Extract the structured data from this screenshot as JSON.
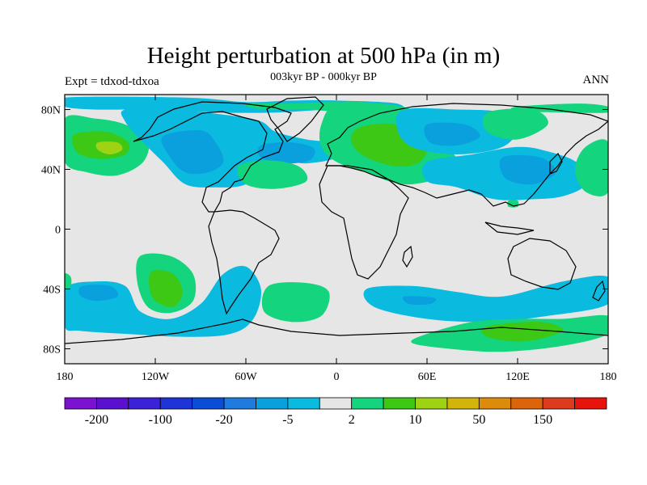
{
  "header": {
    "title": "Height perturbation at 500 hPa (in m)",
    "subtitle": "003kyr BP - 000kyr BP",
    "left_string": "Expt = tdxod-tdxoa",
    "right_string": "ANN"
  },
  "axes": {
    "y_ticks": [
      {
        "label": "80N",
        "lat": 80
      },
      {
        "label": "40N",
        "lat": 40
      },
      {
        "label": "0",
        "lat": 0
      },
      {
        "label": "40S",
        "lat": -40
      },
      {
        "label": "80S",
        "lat": -80
      }
    ],
    "x_ticks": [
      {
        "label": "180",
        "lon": -180
      },
      {
        "label": "120W",
        "lon": -120
      },
      {
        "label": "60W",
        "lon": -60
      },
      {
        "label": "0",
        "lon": 0
      },
      {
        "label": "60E",
        "lon": 60
      },
      {
        "label": "120E",
        "lon": 120
      },
      {
        "label": "180",
        "lon": 180
      }
    ],
    "lon_range": [
      -180,
      180
    ],
    "lat_range": [
      -90,
      90
    ]
  },
  "colorbar": {
    "colors": [
      "#7a12cf",
      "#5a10cc",
      "#3b22d6",
      "#1f34d6",
      "#0a4ed6",
      "#1f7bdd",
      "#0a9fdd",
      "#0abadf",
      "#e6e6e6",
      "#14d47d",
      "#3cc814",
      "#a0d214",
      "#d2b40a",
      "#dc8c0a",
      "#dc640a",
      "#dc3c1e",
      "#e6140a"
    ],
    "labels": [
      {
        "text": "-200",
        "boundary": 1
      },
      {
        "text": "-100",
        "boundary": 3
      },
      {
        "text": "-20",
        "boundary": 5
      },
      {
        "text": "-5",
        "boundary": 7
      },
      {
        "text": "2",
        "boundary": 9
      },
      {
        "text": "10",
        "boundary": 11
      },
      {
        "text": "50",
        "boundary": 13
      },
      {
        "text": "150",
        "boundary": 15
      }
    ]
  },
  "field": [
    {
      "name": "arctic-pacific-blue",
      "level": 7,
      "pts": [
        [
          -180,
          88
        ],
        [
          -100,
          88
        ],
        [
          -60,
          85
        ],
        [
          -30,
          86
        ],
        [
          0,
          86
        ],
        [
          40,
          84
        ],
        [
          40,
          78
        ],
        [
          0,
          80
        ],
        [
          -40,
          78
        ],
        [
          -80,
          78
        ],
        [
          -120,
          80
        ],
        [
          -160,
          80
        ],
        [
          -180,
          82
        ]
      ]
    },
    {
      "name": "arctic-atlantic-green",
      "level": 9,
      "pts": [
        [
          -60,
          84
        ],
        [
          -30,
          84
        ],
        [
          0,
          85
        ],
        [
          30,
          83
        ],
        [
          40,
          80
        ],
        [
          10,
          78
        ],
        [
          -20,
          80
        ],
        [
          -50,
          80
        ]
      ]
    },
    {
      "name": "arctic-right-green",
      "level": 9,
      "pts": [
        [
          120,
          82
        ],
        [
          160,
          84
        ],
        [
          180,
          82
        ],
        [
          180,
          78
        ],
        [
          150,
          78
        ],
        [
          120,
          79
        ]
      ]
    },
    {
      "name": "north-pacific-green",
      "level": 9,
      "pts": [
        [
          -180,
          74
        ],
        [
          -160,
          74
        ],
        [
          -140,
          70
        ],
        [
          -125,
          60
        ],
        [
          -128,
          45
        ],
        [
          -145,
          36
        ],
        [
          -165,
          38
        ],
        [
          -180,
          45
        ]
      ]
    },
    {
      "name": "north-pacific-lime-core",
      "level": 10,
      "pts": [
        [
          -172,
          64
        ],
        [
          -152,
          65
        ],
        [
          -138,
          58
        ],
        [
          -140,
          50
        ],
        [
          -155,
          47
        ],
        [
          -170,
          50
        ],
        [
          -175,
          58
        ]
      ]
    },
    {
      "name": "north-pacific-yellow-core",
      "level": 11,
      "pts": [
        [
          -158,
          58
        ],
        [
          -145,
          58
        ],
        [
          -142,
          53
        ],
        [
          -150,
          50
        ],
        [
          -158,
          53
        ]
      ]
    },
    {
      "name": "north-america-blue",
      "level": 7,
      "pts": [
        [
          -140,
          80
        ],
        [
          -110,
          80
        ],
        [
          -70,
          76
        ],
        [
          -50,
          72
        ],
        [
          -40,
          65
        ],
        [
          -20,
          60
        ],
        [
          0,
          57
        ],
        [
          0,
          48
        ],
        [
          -20,
          44
        ],
        [
          -40,
          45
        ],
        [
          -60,
          30
        ],
        [
          -80,
          28
        ],
        [
          -100,
          30
        ],
        [
          -115,
          45
        ],
        [
          -130,
          60
        ],
        [
          -140,
          72
        ]
      ]
    },
    {
      "name": "north-america-blue-core",
      "level": 6,
      "pts": [
        [
          -115,
          62
        ],
        [
          -90,
          66
        ],
        [
          -80,
          58
        ],
        [
          -75,
          45
        ],
        [
          -85,
          38
        ],
        [
          -100,
          38
        ],
        [
          -110,
          48
        ]
      ]
    },
    {
      "name": "north-atlantic-blue-core",
      "level": 6,
      "pts": [
        [
          -50,
          56
        ],
        [
          -30,
          58
        ],
        [
          -15,
          54
        ],
        [
          -18,
          46
        ],
        [
          -35,
          44
        ],
        [
          -50,
          48
        ]
      ]
    },
    {
      "name": "atlantic-green",
      "level": 9,
      "pts": [
        [
          -65,
          42
        ],
        [
          -45,
          46
        ],
        [
          -25,
          42
        ],
        [
          -20,
          32
        ],
        [
          -40,
          27
        ],
        [
          -60,
          30
        ]
      ]
    },
    {
      "name": "eurasia-green",
      "level": 9,
      "pts": [
        [
          0,
          84
        ],
        [
          30,
          84
        ],
        [
          50,
          80
        ],
        [
          60,
          72
        ],
        [
          70,
          60
        ],
        [
          80,
          45
        ],
        [
          70,
          35
        ],
        [
          50,
          30
        ],
        [
          35,
          32
        ],
        [
          20,
          38
        ],
        [
          0,
          45
        ],
        [
          -10,
          55
        ],
        [
          -10,
          70
        ]
      ]
    },
    {
      "name": "eurasia-lime-core",
      "level": 10,
      "pts": [
        [
          15,
          68
        ],
        [
          40,
          70
        ],
        [
          60,
          58
        ],
        [
          55,
          45
        ],
        [
          40,
          42
        ],
        [
          20,
          48
        ],
        [
          10,
          58
        ]
      ]
    },
    {
      "name": "siberia-blue",
      "level": 7,
      "pts": [
        [
          45,
          80
        ],
        [
          80,
          80
        ],
        [
          110,
          78
        ],
        [
          120,
          68
        ],
        [
          110,
          55
        ],
        [
          80,
          50
        ],
        [
          50,
          55
        ],
        [
          40,
          68
        ]
      ]
    },
    {
      "name": "siberia-blue-core",
      "level": 6,
      "pts": [
        [
          60,
          70
        ],
        [
          85,
          70
        ],
        [
          95,
          62
        ],
        [
          80,
          56
        ],
        [
          62,
          58
        ]
      ]
    },
    {
      "name": "siberia-green",
      "level": 9,
      "pts": [
        [
          100,
          78
        ],
        [
          130,
          80
        ],
        [
          140,
          70
        ],
        [
          120,
          60
        ],
        [
          100,
          65
        ]
      ]
    },
    {
      "name": "east-asia-blue",
      "level": 7,
      "pts": [
        [
          60,
          45
        ],
        [
          90,
          50
        ],
        [
          120,
          55
        ],
        [
          140,
          52
        ],
        [
          160,
          44
        ],
        [
          165,
          30
        ],
        [
          150,
          22
        ],
        [
          130,
          20
        ],
        [
          105,
          20
        ],
        [
          80,
          28
        ],
        [
          60,
          32
        ]
      ]
    },
    {
      "name": "east-asia-blue-core",
      "level": 6,
      "pts": [
        [
          110,
          48
        ],
        [
          135,
          48
        ],
        [
          145,
          38
        ],
        [
          130,
          30
        ],
        [
          112,
          34
        ]
      ]
    },
    {
      "name": "west-pacific-green",
      "level": 9,
      "pts": [
        [
          165,
          55
        ],
        [
          180,
          58
        ],
        [
          180,
          25
        ],
        [
          165,
          25
        ],
        [
          158,
          40
        ]
      ]
    },
    {
      "name": "tropical-green-dot",
      "level": 9,
      "pts": [
        [
          114,
          19
        ],
        [
          120,
          19
        ],
        [
          120,
          15
        ],
        [
          114,
          15
        ]
      ]
    },
    {
      "name": "south-pacific-green",
      "level": 9,
      "pts": [
        [
          -130,
          -18
        ],
        [
          -110,
          -18
        ],
        [
          -95,
          -30
        ],
        [
          -95,
          -48
        ],
        [
          -110,
          -56
        ],
        [
          -125,
          -52
        ],
        [
          -132,
          -35
        ]
      ]
    },
    {
      "name": "south-pacific-lime",
      "level": 10,
      "pts": [
        [
          -122,
          -28
        ],
        [
          -108,
          -30
        ],
        [
          -102,
          -42
        ],
        [
          -108,
          -52
        ],
        [
          -120,
          -48
        ],
        [
          -124,
          -38
        ]
      ]
    },
    {
      "name": "south-pacific-blue",
      "level": 7,
      "pts": [
        [
          -180,
          -40
        ],
        [
          -160,
          -35
        ],
        [
          -140,
          -38
        ],
        [
          -130,
          -55
        ],
        [
          -110,
          -60
        ],
        [
          -90,
          -50
        ],
        [
          -75,
          -30
        ],
        [
          -60,
          -25
        ],
        [
          -50,
          -40
        ],
        [
          -55,
          -60
        ],
        [
          -70,
          -70
        ],
        [
          -100,
          -72
        ],
        [
          -140,
          -70
        ],
        [
          -170,
          -68
        ],
        [
          -180,
          -65
        ]
      ]
    },
    {
      "name": "south-pacific-blue-core",
      "level": 6,
      "pts": [
        [
          -168,
          -38
        ],
        [
          -150,
          -38
        ],
        [
          -145,
          -45
        ],
        [
          -160,
          -48
        ],
        [
          -170,
          -44
        ]
      ]
    },
    {
      "name": "south-atlantic-green",
      "level": 9,
      "pts": [
        [
          -45,
          -38
        ],
        [
          -20,
          -36
        ],
        [
          -5,
          -42
        ],
        [
          -10,
          -58
        ],
        [
          -30,
          -62
        ],
        [
          -48,
          -55
        ]
      ]
    },
    {
      "name": "indian-ocean-blue",
      "level": 7,
      "pts": [
        [
          20,
          -40
        ],
        [
          50,
          -38
        ],
        [
          80,
          -42
        ],
        [
          110,
          -45
        ],
        [
          150,
          -35
        ],
        [
          180,
          -32
        ],
        [
          180,
          -50
        ],
        [
          140,
          -58
        ],
        [
          100,
          -62
        ],
        [
          60,
          -60
        ],
        [
          25,
          -52
        ]
      ]
    },
    {
      "name": "indian-ocean-blue-core",
      "level": 6,
      "pts": [
        [
          45,
          -45
        ],
        [
          65,
          -46
        ],
        [
          62,
          -50
        ],
        [
          48,
          -50
        ]
      ]
    },
    {
      "name": "antarctic-green",
      "level": 9,
      "pts": [
        [
          60,
          -70
        ],
        [
          90,
          -62
        ],
        [
          120,
          -60
        ],
        [
          150,
          -60
        ],
        [
          180,
          -58
        ],
        [
          180,
          -70
        ],
        [
          150,
          -78
        ],
        [
          110,
          -82
        ],
        [
          75,
          -80
        ],
        [
          50,
          -76
        ]
      ]
    },
    {
      "name": "antarctic-lime-core",
      "level": 10,
      "pts": [
        [
          100,
          -65
        ],
        [
          135,
          -62
        ],
        [
          150,
          -68
        ],
        [
          125,
          -75
        ],
        [
          100,
          -72
        ]
      ]
    },
    {
      "name": "tip-left-green",
      "level": 9,
      "pts": [
        [
          -180,
          -30
        ],
        [
          -176,
          -32
        ],
        [
          -176,
          -38
        ],
        [
          -180,
          -40
        ]
      ]
    }
  ]
}
